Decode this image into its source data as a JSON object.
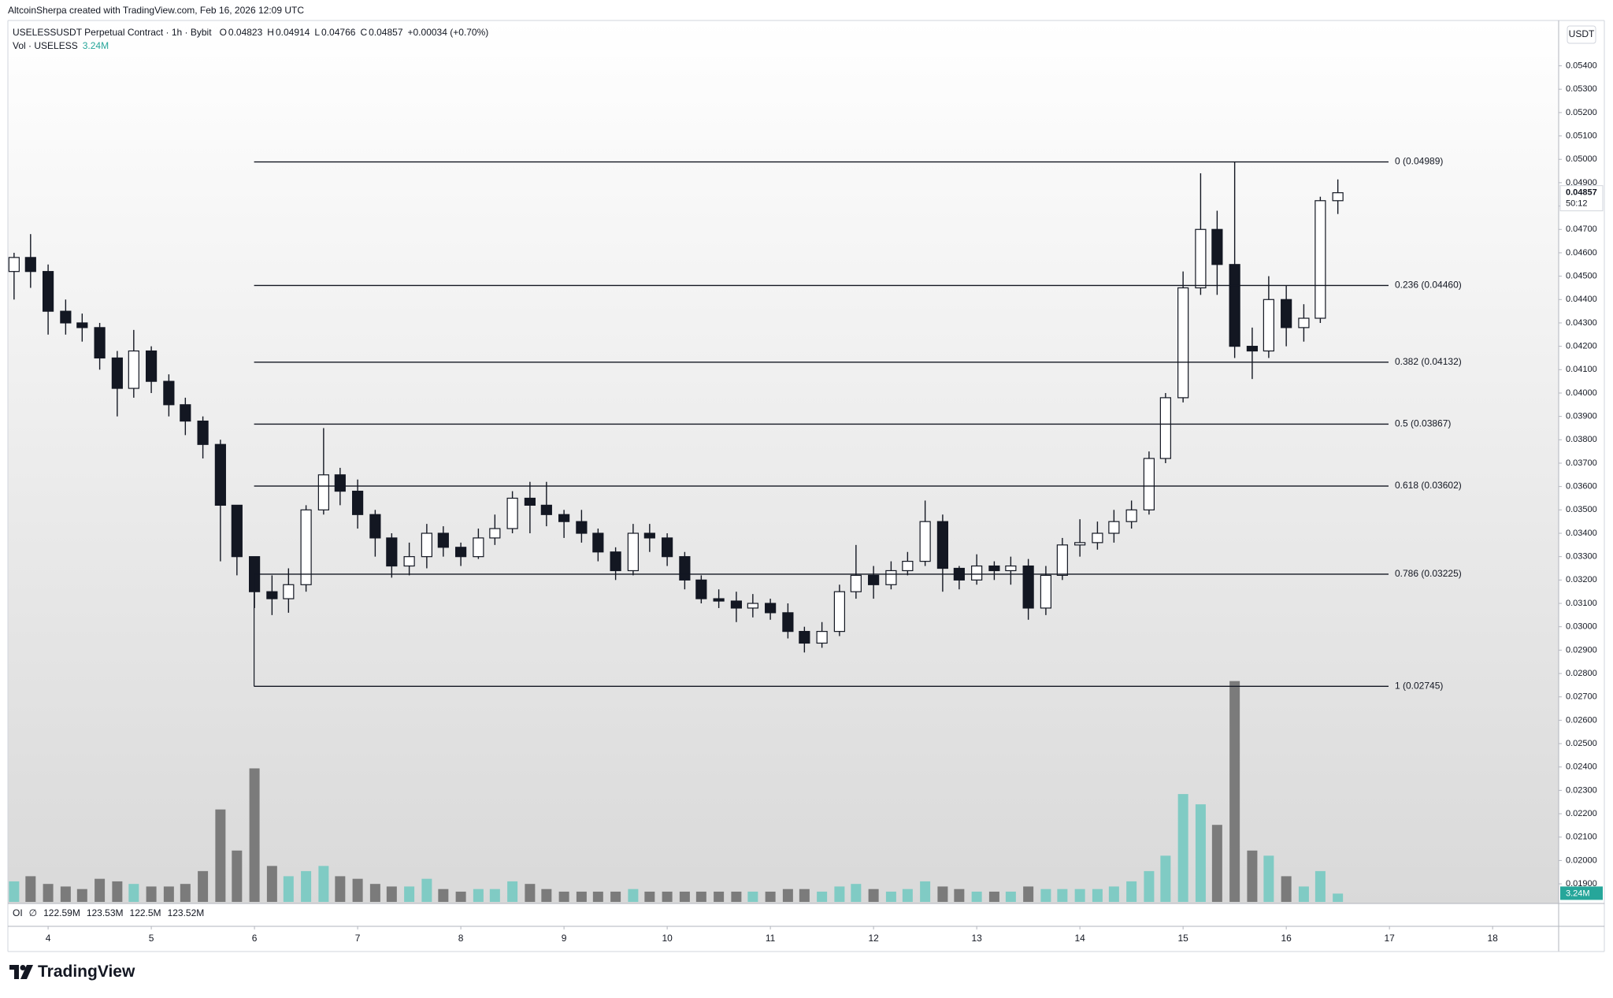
{
  "header": {
    "credit": "AltcoinSherpa created with TradingView.com, Feb 16, 2026 12:09 UTC",
    "symbol": "USELESSUSDT Perpetual Contract · 1h · Bybit",
    "ohlc": [
      {
        "key": "O",
        "value": "0.04823"
      },
      {
        "key": "H",
        "value": "0.04914"
      },
      {
        "key": "L",
        "value": "0.04766"
      },
      {
        "key": "C",
        "value": "0.04857"
      }
    ],
    "change": "+0.00034 (+0.70%)",
    "vol_name": "Vol · USELESS",
    "oi_label": "OI",
    "oi_symbol": "∅",
    "oi_values": [
      "122.59M",
      "123.53M",
      "122.5M",
      "123.52M"
    ],
    "brand": "TradingView"
  },
  "chart_data": {
    "type": "candlestick",
    "y_unit": "USDT",
    "x": [
      3.67,
      3.83,
      4,
      4.17,
      4.33,
      4.5,
      4.67,
      4.83,
      5,
      5.17,
      5.33,
      5.5,
      5.67,
      5.83,
      6,
      6.17,
      6.33,
      6.5,
      6.67,
      6.83,
      7,
      7.17,
      7.33,
      7.5,
      7.67,
      7.83,
      8,
      8.17,
      8.33,
      8.5,
      8.67,
      8.83,
      9,
      9.17,
      9.33,
      9.5,
      9.67,
      9.83,
      10,
      10.17,
      10.33,
      10.5,
      10.67,
      10.83,
      11,
      11.17,
      11.33,
      11.5,
      11.67,
      11.83,
      12,
      12.17,
      12.33,
      12.5,
      12.67,
      12.83,
      13,
      13.17,
      13.33,
      13.5,
      13.67,
      13.83,
      14,
      14.17,
      14.33,
      14.5,
      14.67,
      14.83,
      15,
      15.17,
      15.33,
      15.5,
      15.67,
      15.83,
      16,
      16.17,
      16.33,
      16.5
    ],
    "open": [
      0.0452,
      0.0458,
      0.0452,
      0.0435,
      0.043,
      0.0428,
      0.0415,
      0.0402,
      0.0418,
      0.0405,
      0.0395,
      0.0388,
      0.0378,
      0.0352,
      0.033,
      0.0315,
      0.0312,
      0.0318,
      0.035,
      0.0365,
      0.0358,
      0.0348,
      0.0338,
      0.0326,
      0.033,
      0.034,
      0.0334,
      0.033,
      0.0338,
      0.0342,
      0.0355,
      0.0352,
      0.0348,
      0.0345,
      0.034,
      0.0332,
      0.0324,
      0.034,
      0.0338,
      0.033,
      0.032,
      0.0312,
      0.0311,
      0.0308,
      0.031,
      0.0306,
      0.0298,
      0.0293,
      0.0298,
      0.0315,
      0.0322,
      0.0318,
      0.0324,
      0.0328,
      0.0345,
      0.0325,
      0.032,
      0.0326,
      0.0324,
      0.0326,
      0.0308,
      0.0322,
      0.0335,
      0.0336,
      0.034,
      0.0345,
      0.035,
      0.0372,
      0.0398,
      0.0445,
      0.047,
      0.0455,
      0.042,
      0.0418,
      0.044,
      0.0428,
      0.0432,
      0.04823
    ],
    "high": [
      0.046,
      0.0468,
      0.0455,
      0.044,
      0.0434,
      0.043,
      0.0418,
      0.0427,
      0.042,
      0.0408,
      0.0398,
      0.039,
      0.038,
      0.0352,
      0.033,
      0.0322,
      0.0325,
      0.0352,
      0.0385,
      0.0368,
      0.0363,
      0.035,
      0.034,
      0.0336,
      0.0344,
      0.0343,
      0.0336,
      0.0342,
      0.0348,
      0.0358,
      0.0362,
      0.0362,
      0.035,
      0.035,
      0.0342,
      0.0334,
      0.0344,
      0.0344,
      0.034,
      0.0332,
      0.0322,
      0.0316,
      0.0315,
      0.0314,
      0.0312,
      0.031,
      0.03,
      0.0302,
      0.0318,
      0.0335,
      0.0326,
      0.0328,
      0.0332,
      0.0354,
      0.0348,
      0.0326,
      0.0331,
      0.0328,
      0.033,
      0.0329,
      0.0326,
      0.0338,
      0.0346,
      0.0345,
      0.035,
      0.0354,
      0.0375,
      0.04,
      0.0452,
      0.0494,
      0.0478,
      0.04989,
      0.0428,
      0.045,
      0.0446,
      0.0438,
      0.0484,
      0.04914
    ],
    "low": [
      0.044,
      0.0445,
      0.0425,
      0.0425,
      0.0422,
      0.041,
      0.039,
      0.0398,
      0.04,
      0.039,
      0.0382,
      0.0372,
      0.0328,
      0.0322,
      0.0308,
      0.0305,
      0.0306,
      0.0315,
      0.0348,
      0.0352,
      0.0342,
      0.033,
      0.0321,
      0.0322,
      0.0325,
      0.033,
      0.0326,
      0.0329,
      0.0335,
      0.034,
      0.034,
      0.0343,
      0.0338,
      0.0336,
      0.0328,
      0.032,
      0.0322,
      0.0332,
      0.0326,
      0.0316,
      0.031,
      0.0308,
      0.0302,
      0.0304,
      0.0303,
      0.0295,
      0.0289,
      0.0291,
      0.0296,
      0.0312,
      0.0312,
      0.0316,
      0.0322,
      0.0326,
      0.0315,
      0.0316,
      0.0318,
      0.032,
      0.0318,
      0.0303,
      0.0305,
      0.032,
      0.033,
      0.0333,
      0.0336,
      0.0342,
      0.0348,
      0.037,
      0.0396,
      0.0442,
      0.0442,
      0.0415,
      0.0406,
      0.0415,
      0.042,
      0.0422,
      0.043,
      0.04766
    ],
    "close": [
      0.0458,
      0.0452,
      0.0435,
      0.043,
      0.0428,
      0.0415,
      0.0402,
      0.0418,
      0.0405,
      0.0395,
      0.0388,
      0.0378,
      0.0352,
      0.033,
      0.0315,
      0.0312,
      0.0318,
      0.035,
      0.0365,
      0.0358,
      0.0348,
      0.0338,
      0.0326,
      0.033,
      0.034,
      0.0334,
      0.033,
      0.0338,
      0.0342,
      0.0355,
      0.0352,
      0.0348,
      0.0345,
      0.034,
      0.0332,
      0.0324,
      0.034,
      0.0338,
      0.033,
      0.032,
      0.0312,
      0.0311,
      0.0308,
      0.031,
      0.0306,
      0.0298,
      0.0293,
      0.0298,
      0.0315,
      0.0322,
      0.0318,
      0.0324,
      0.0328,
      0.0345,
      0.0325,
      0.032,
      0.0326,
      0.0324,
      0.0326,
      0.0308,
      0.0322,
      0.0335,
      0.0336,
      0.034,
      0.0345,
      0.035,
      0.0372,
      0.0398,
      0.0445,
      0.047,
      0.0455,
      0.042,
      0.0418,
      0.044,
      0.0428,
      0.0432,
      0.04823,
      0.04857
    ],
    "volume": [
      8,
      10,
      7,
      6,
      5,
      9,
      8,
      7,
      6,
      6,
      7,
      12,
      36,
      20,
      52,
      14,
      10,
      12,
      14,
      10,
      9,
      7,
      6,
      6,
      9,
      5,
      4,
      5,
      5,
      8,
      7,
      5,
      4,
      4,
      4,
      4,
      5,
      4,
      4,
      4,
      4,
      4,
      4,
      4,
      4,
      5,
      5,
      4,
      6,
      7,
      5,
      4,
      5,
      8,
      6,
      5,
      4,
      4,
      4,
      6,
      5,
      5,
      5,
      5,
      6,
      8,
      12,
      18,
      42,
      38,
      30,
      86,
      20,
      18,
      10,
      6,
      12,
      3.24
    ],
    "up_color": "#ffffff",
    "down_color": "#131722",
    "volume_up_color": "#80cbc4",
    "volume_down_color": "#7b7b7b",
    "xlim": [
      3.61,
      18.64
    ],
    "xticks": [
      4,
      5,
      6,
      7,
      8,
      9,
      10,
      11,
      12,
      13,
      14,
      15,
      16,
      17,
      18
    ],
    "ylim": [
      0.01816,
      0.05594
    ],
    "volume_ylim": [
      0,
      100
    ],
    "yticks": [
      {
        "value": 0.019,
        "label": "0.01900"
      },
      {
        "value": 0.02,
        "label": "0.02000"
      },
      {
        "value": 0.021,
        "label": "0.02100"
      },
      {
        "value": 0.022,
        "label": "0.02200"
      },
      {
        "value": 0.023,
        "label": "0.02300"
      },
      {
        "value": 0.024,
        "label": "0.02400"
      },
      {
        "value": 0.025,
        "label": "0.02500"
      },
      {
        "value": 0.026,
        "label": "0.02600"
      },
      {
        "value": 0.027,
        "label": "0.02700"
      },
      {
        "value": 0.028,
        "label": "0.02800"
      },
      {
        "value": 0.029,
        "label": "0.02900"
      },
      {
        "value": 0.03,
        "label": "0.03000"
      },
      {
        "value": 0.031,
        "label": "0.03100"
      },
      {
        "value": 0.032,
        "label": "0.03200"
      },
      {
        "value": 0.033,
        "label": "0.03300"
      },
      {
        "value": 0.034,
        "label": "0.03400"
      },
      {
        "value": 0.035,
        "label": "0.03500"
      },
      {
        "value": 0.036,
        "label": "0.03600"
      },
      {
        "value": 0.037,
        "label": "0.03700"
      },
      {
        "value": 0.038,
        "label": "0.03800"
      },
      {
        "value": 0.039,
        "label": "0.03900"
      },
      {
        "value": 0.04,
        "label": "0.04000"
      },
      {
        "value": 0.041,
        "label": "0.04100"
      },
      {
        "value": 0.042,
        "label": "0.04200"
      },
      {
        "value": 0.043,
        "label": "0.04300"
      },
      {
        "value": 0.044,
        "label": "0.04400"
      },
      {
        "value": 0.045,
        "label": "0.04500"
      },
      {
        "value": 0.046,
        "label": "0.04600"
      },
      {
        "value": 0.047,
        "label": "0.04700"
      },
      {
        "value": 0.048,
        "label": "0.04800"
      },
      {
        "value": 0.049,
        "label": "0.04900"
      },
      {
        "value": 0.05,
        "label": "0.05000"
      },
      {
        "value": 0.051,
        "label": "0.05100"
      },
      {
        "value": 0.052,
        "label": "0.05200"
      },
      {
        "value": 0.053,
        "label": "0.05300"
      },
      {
        "value": 0.054,
        "label": "0.05400"
      }
    ],
    "price_badge": {
      "value": 0.04857,
      "label": "0.04857"
    },
    "countdown": "50:12",
    "volume_badge": {
      "value": 3.24,
      "label": "3.24M"
    },
    "fib_levels": [
      {
        "value": 0.04989,
        "label": "0 (0.04989)"
      },
      {
        "value": 0.0446,
        "label": "0.236 (0.04460)"
      },
      {
        "value": 0.04132,
        "label": "0.382 (0.04132)"
      },
      {
        "value": 0.03867,
        "label": "0.5 (0.03867)"
      },
      {
        "value": 0.03602,
        "label": "0.618 (0.03602)"
      },
      {
        "value": 0.03225,
        "label": "0.786 (0.03225)"
      },
      {
        "value": 0.02745,
        "label": "1 (0.02745)"
      }
    ]
  }
}
